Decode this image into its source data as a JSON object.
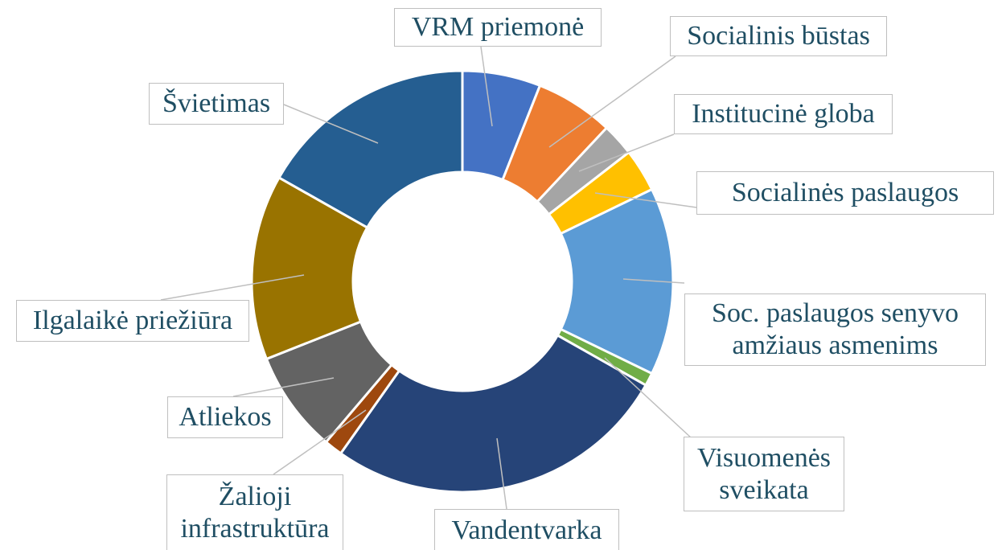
{
  "chart_data": {
    "type": "donut",
    "categories": [
      "VRM priemonė",
      "Socialinis būstas",
      "Institucinė globa",
      "Socialinės paslaugos",
      "Soc. paslaugos senyvo amžiaus asmenims",
      "Visuomenės sveikata",
      "Vandentvarka",
      "Žalioji infrastruktūra",
      "Atliekos",
      "Ilgalaikė priežiūra",
      "Švietimas"
    ],
    "values": [
      6,
      6,
      2.5,
      3.3,
      14.4,
      1,
      26.6,
      1.4,
      7.8,
      14.2,
      16.8
    ],
    "colors": [
      "#4472c4",
      "#ed7d31",
      "#a5a5a5",
      "#ffc000",
      "#5b9bd5",
      "#70ad47",
      "#264478",
      "#9e480e",
      "#636363",
      "#997300",
      "#255e91"
    ]
  }
}
